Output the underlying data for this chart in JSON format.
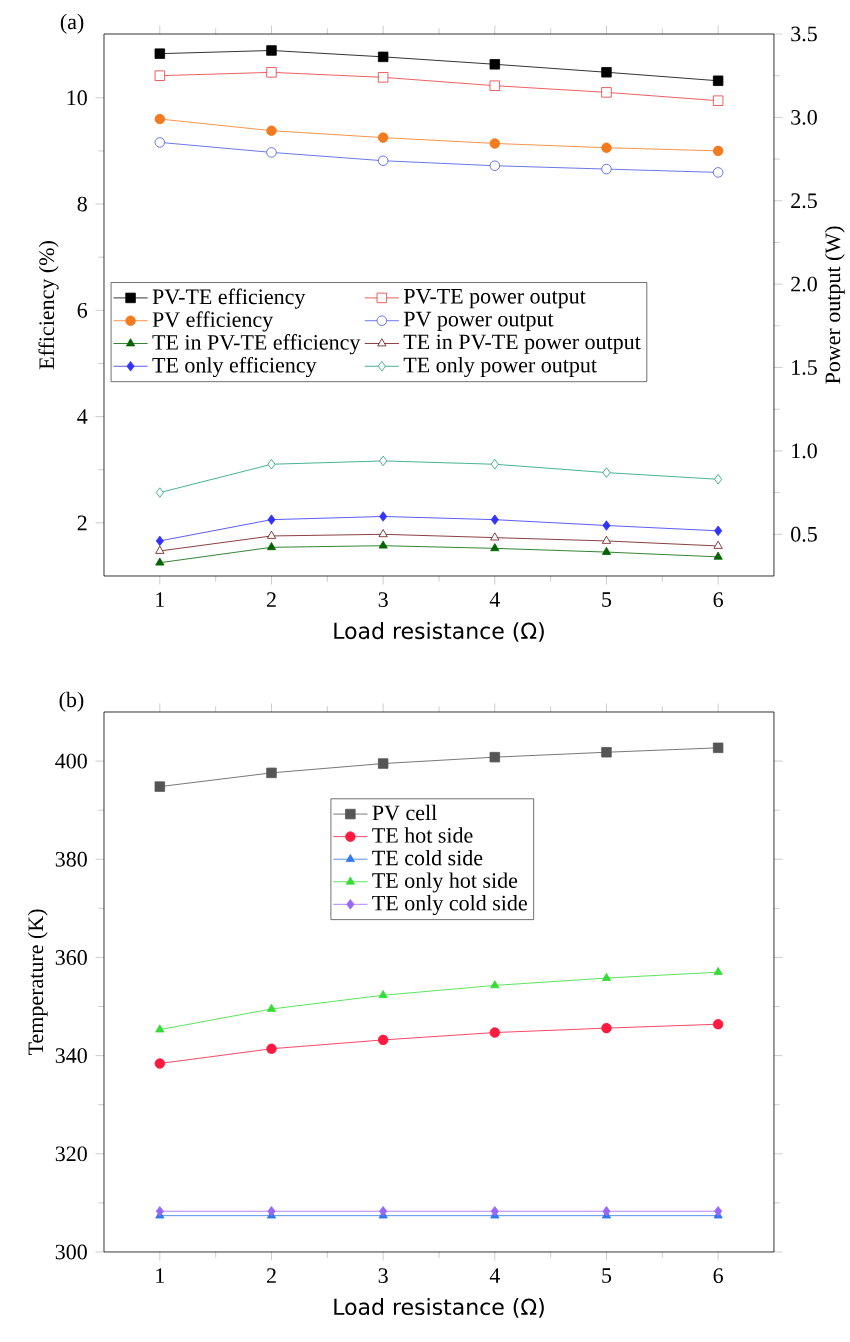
{
  "chart_data": [
    {
      "type": "line",
      "title": "(a)",
      "xlabel": "Load resistance (Ω)",
      "ylabel": "Efficiency (%)",
      "y2label": "Power output (W)",
      "x": [
        1,
        2,
        3,
        4,
        5,
        6
      ],
      "xlim": [
        0.5,
        6.5
      ],
      "xticks": [
        1,
        2,
        3,
        4,
        5,
        6
      ],
      "ylim": [
        1,
        11.2
      ],
      "yticks": [
        2,
        4,
        6,
        8,
        10
      ],
      "y2lim": [
        0.25,
        3.5
      ],
      "y2ticks": [
        0.5,
        {
          "value": 1,
          "label": "1.0"
        },
        1.5,
        {
          "value": 2,
          "label": "2.0"
        },
        2.5,
        {
          "value": 3,
          "label": "3.0"
        },
        3.5
      ],
      "legend": "left",
      "grid": false,
      "series": [
        {
          "name": "PV-TE efficiency",
          "color": "#000000",
          "marker": "square",
          "values": [
            10.83,
            10.89,
            10.77,
            10.63,
            10.48,
            10.32
          ]
        },
        {
          "name": "PV-TE power output",
          "color": "#e8373a",
          "marker": "square",
          "axis": "y2",
          "values": [
            3.25,
            3.27,
            3.24,
            3.19,
            3.15,
            3.1
          ]
        },
        {
          "name": "PV efficiency",
          "color": "#f47a20",
          "marker": "circle",
          "values": [
            9.6,
            9.38,
            9.25,
            9.14,
            9.06,
            9.0
          ]
        },
        {
          "name": "PV power output",
          "color": "#4455e0",
          "marker": "circle",
          "axis": "y2",
          "values": [
            2.85,
            2.79,
            2.74,
            2.71,
            2.69,
            2.67
          ]
        },
        {
          "name": "TE in PV-TE efficiency",
          "color": "#006400",
          "marker": "triangle",
          "values": [
            1.25,
            1.54,
            1.57,
            1.52,
            1.45,
            1.36
          ]
        },
        {
          "name": "TE in PV-TE power output",
          "color": "#6b1010",
          "marker": "triangle",
          "axis": "y2",
          "values": [
            0.4,
            0.49,
            0.5,
            0.48,
            0.46,
            0.43
          ]
        },
        {
          "name": "TE only efficiency",
          "color": "#3333ff",
          "marker": "diamond",
          "values": [
            1.66,
            2.06,
            2.12,
            2.06,
            1.95,
            1.85
          ]
        },
        {
          "name": "TE only power output",
          "color": "#1a9e77",
          "marker": "diamond",
          "axis": "y2",
          "values": [
            0.75,
            0.92,
            0.94,
            0.92,
            0.87,
            0.83
          ]
        }
      ]
    },
    {
      "type": "line",
      "title": "(b)",
      "xlabel": "Load resistance (Ω)",
      "ylabel": "Temperature (K)",
      "x": [
        1,
        2,
        3,
        4,
        5,
        6
      ],
      "xlim": [
        0.5,
        6.5
      ],
      "xticks": [
        1,
        2,
        3,
        4,
        5,
        6
      ],
      "ylim": [
        300,
        410
      ],
      "yticks": [
        300,
        320,
        340,
        360,
        380,
        400
      ],
      "legend": "top",
      "grid": false,
      "series": [
        {
          "name": "PV cell",
          "color": "#555555",
          "marker": "square",
          "values": [
            394.8,
            397.6,
            399.5,
            400.8,
            401.8,
            402.7
          ]
        },
        {
          "name": "TE hot side",
          "color": "#ff1a40",
          "marker": "circle",
          "values": [
            338.4,
            341.4,
            343.2,
            344.7,
            345.6,
            346.4
          ]
        },
        {
          "name": "TE cold side",
          "color": "#3377ee",
          "marker": "triangle",
          "values": [
            307.4,
            307.4,
            307.4,
            307.4,
            307.4,
            307.4
          ]
        },
        {
          "name": "TE only hot side",
          "color": "#33dd33",
          "marker": "triangle",
          "values": [
            345.3,
            349.5,
            352.3,
            354.3,
            355.8,
            357.0
          ]
        },
        {
          "name": "TE only cold side",
          "color": "#9966ff",
          "marker": "diamond",
          "values": [
            308.3,
            308.3,
            308.3,
            308.3,
            308.3,
            308.3
          ]
        }
      ]
    }
  ]
}
